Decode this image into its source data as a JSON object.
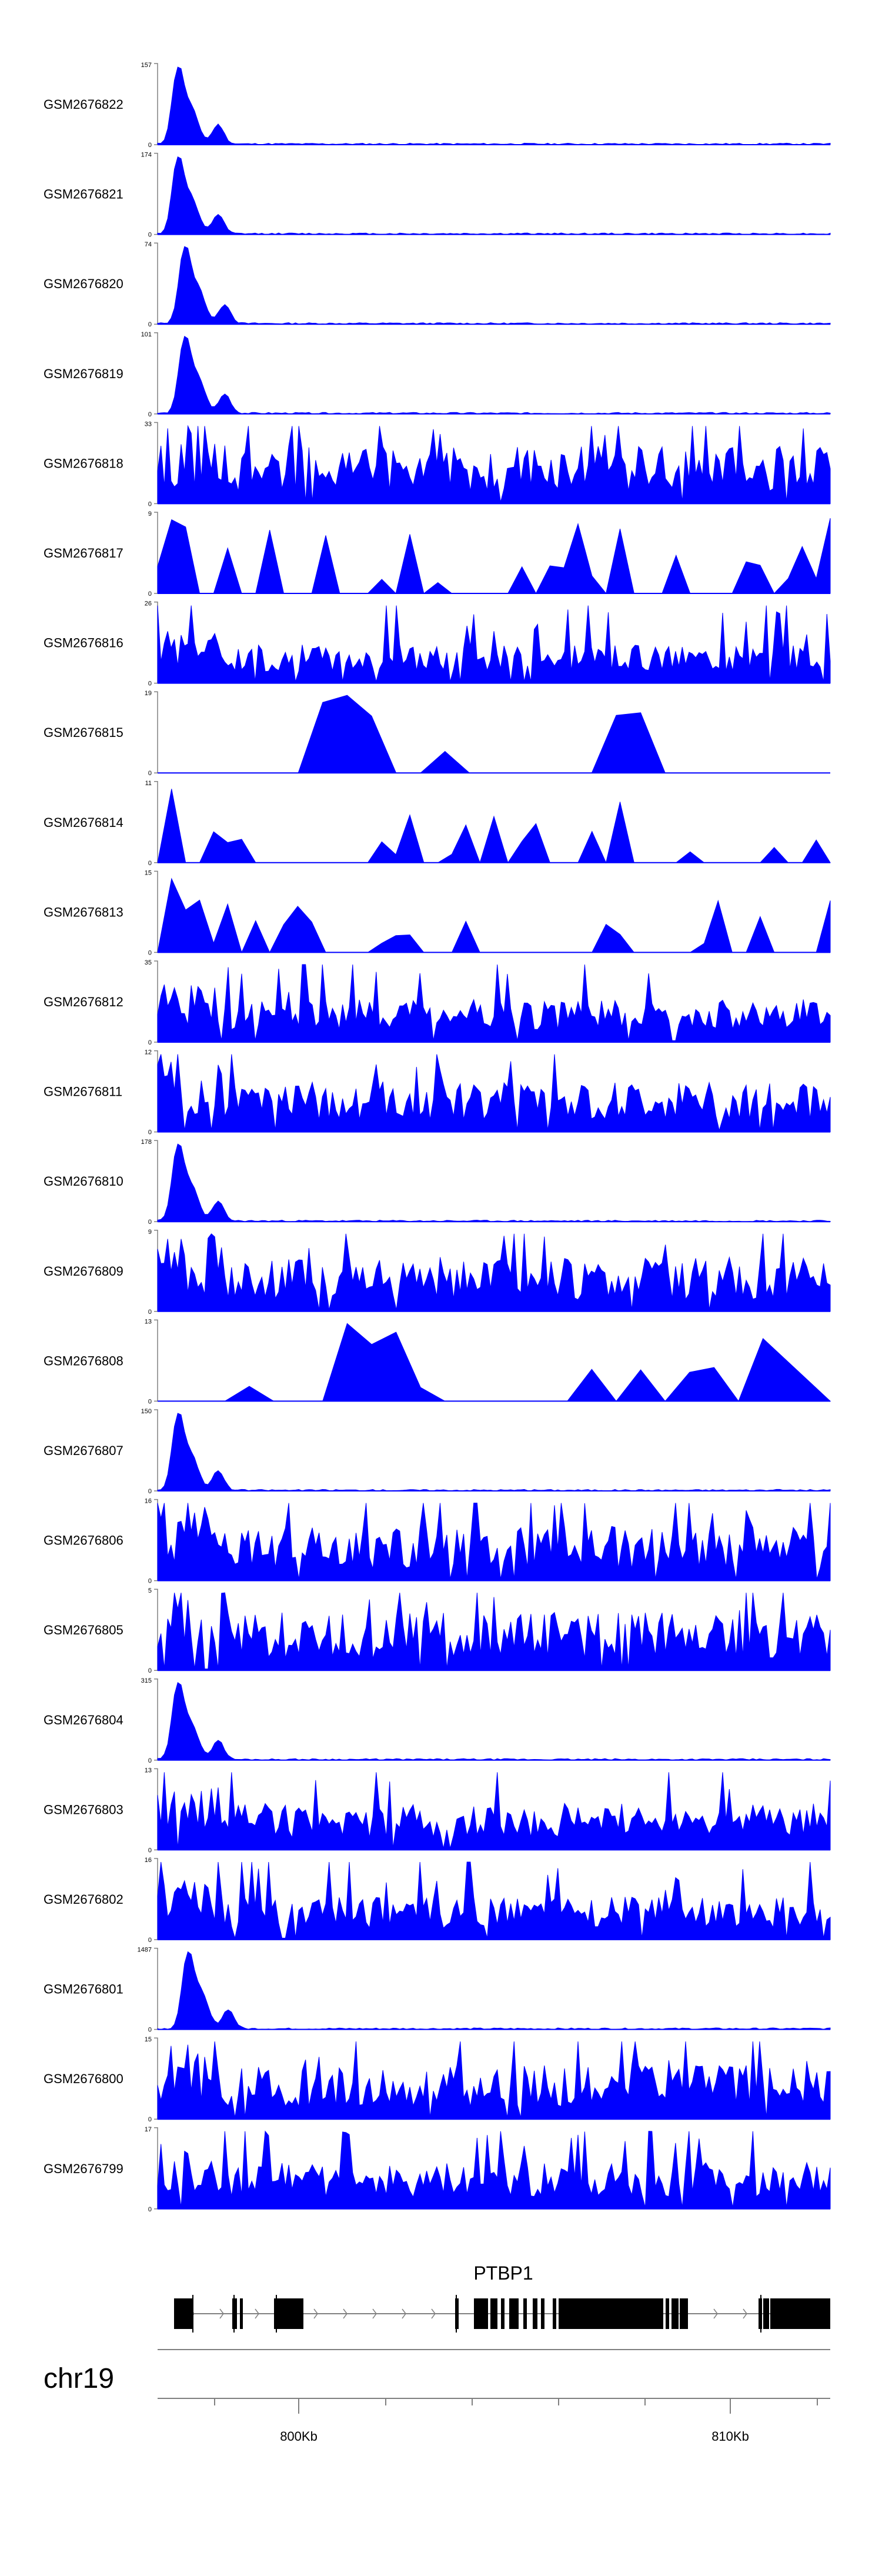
{
  "chart_data": {
    "type": "area",
    "title": "",
    "chromosome": "chr19",
    "gene_label": "PTBP1",
    "x_ticks": [
      "800Kb",
      "810Kb"
    ],
    "tracks": [
      {
        "name": "GSM2676822",
        "max": "157",
        "min": "0",
        "shape": "peak",
        "scale": 1.0,
        "peak_pos": 0.03,
        "seed": 11
      },
      {
        "name": "GSM2676821",
        "max": "174",
        "min": "0",
        "shape": "peak",
        "scale": 1.0,
        "peak_pos": 0.03,
        "seed": 12
      },
      {
        "name": "GSM2676820",
        "max": "74",
        "min": "0",
        "shape": "peak",
        "scale": 1.0,
        "peak_pos": 0.04,
        "seed": 13
      },
      {
        "name": "GSM2676819",
        "max": "101",
        "min": "0",
        "shape": "peak",
        "scale": 1.0,
        "peak_pos": 0.04,
        "seed": 14
      },
      {
        "name": "GSM2676818",
        "max": "33",
        "min": "0",
        "shape": "dense",
        "scale": 0.6,
        "seed": 15
      },
      {
        "name": "GSM2676817",
        "max": "9",
        "min": "0",
        "shape": "sparse",
        "scale": 0.9,
        "seed": 16
      },
      {
        "name": "GSM2676816",
        "max": "26",
        "min": "0",
        "shape": "dense",
        "scale": 0.35,
        "seed": 17
      },
      {
        "name": "GSM2676815",
        "max": "19",
        "min": "0",
        "shape": "sparse2",
        "scale": 0.9,
        "seed": 18
      },
      {
        "name": "GSM2676814",
        "max": "11",
        "min": "0",
        "shape": "sparse",
        "scale": 0.7,
        "seed": 19
      },
      {
        "name": "GSM2676813",
        "max": "15",
        "min": "0",
        "shape": "sparse",
        "scale": 0.6,
        "seed": 20
      },
      {
        "name": "GSM2676812",
        "max": "35",
        "min": "0",
        "shape": "dense",
        "scale": 0.4,
        "seed": 21
      },
      {
        "name": "GSM2676811",
        "max": "12",
        "min": "0",
        "shape": "dense",
        "scale": 0.5,
        "seed": 22
      },
      {
        "name": "GSM2676810",
        "max": "178",
        "min": "0",
        "shape": "peak",
        "scale": 1.0,
        "peak_pos": 0.03,
        "seed": 23
      },
      {
        "name": "GSM2676809",
        "max": "9",
        "min": "0",
        "shape": "dense",
        "scale": 0.55,
        "seed": 24
      },
      {
        "name": "GSM2676808",
        "max": "13",
        "min": "0",
        "shape": "sparse2",
        "scale": 0.8,
        "seed": 25
      },
      {
        "name": "GSM2676807",
        "max": "150",
        "min": "0",
        "shape": "peak",
        "scale": 1.0,
        "peak_pos": 0.03,
        "seed": 26
      },
      {
        "name": "GSM2676806",
        "max": "16",
        "min": "0",
        "shape": "dense",
        "scale": 0.55,
        "seed": 27
      },
      {
        "name": "GSM2676805",
        "max": "5",
        "min": "0",
        "shape": "dense",
        "scale": 0.6,
        "seed": 28
      },
      {
        "name": "GSM2676804",
        "max": "315",
        "min": "0",
        "shape": "peak",
        "scale": 1.0,
        "peak_pos": 0.03,
        "seed": 29
      },
      {
        "name": "GSM2676803",
        "max": "13",
        "min": "0",
        "shape": "dense",
        "scale": 0.45,
        "seed": 30
      },
      {
        "name": "GSM2676802",
        "max": "16",
        "min": "0",
        "shape": "dense",
        "scale": 0.4,
        "seed": 31
      },
      {
        "name": "GSM2676801",
        "max": "1487",
        "min": "0",
        "shape": "peak",
        "scale": 1.0,
        "peak_pos": 0.045,
        "seed": 32
      },
      {
        "name": "GSM2676800",
        "max": "15",
        "min": "0",
        "shape": "dense",
        "scale": 0.55,
        "seed": 33
      },
      {
        "name": "GSM2676799",
        "max": "17",
        "min": "0",
        "shape": "dense",
        "scale": 0.45,
        "seed": 34
      }
    ]
  },
  "colors": {
    "track_fill": "#0000ff",
    "gene": "#000000",
    "axis": "#808080"
  }
}
